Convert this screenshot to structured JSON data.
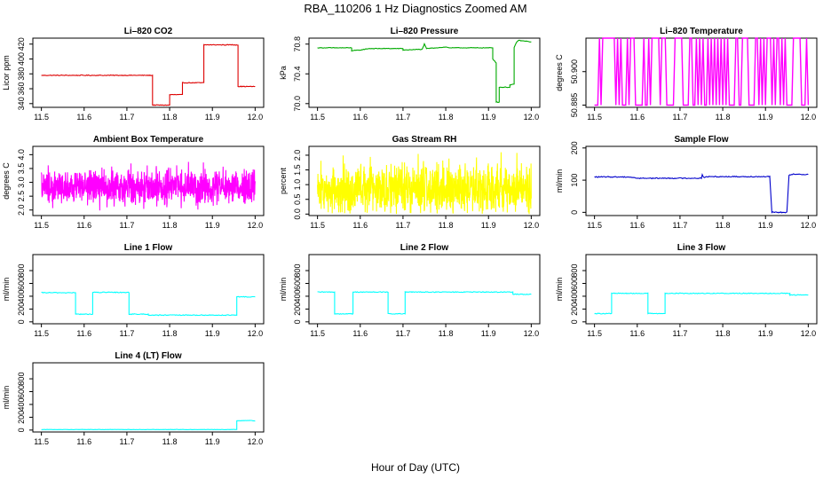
{
  "figure": {
    "title": "RBA_110206  1 Hz Diagnostics Zoomed AM",
    "xlabel": "Hour of Day (UTC)"
  },
  "chart_data": [
    {
      "type": "line",
      "title": "Li–820 CO2",
      "ylabel": "Licor ppm",
      "color": "#dd0000",
      "xlim": [
        11.5,
        12.0
      ],
      "ylim": [
        335,
        428
      ],
      "xticks": [
        "11.5",
        "11.6",
        "11.7",
        "11.8",
        "11.9",
        "12.0"
      ],
      "yticks": [
        "340",
        "360",
        "380",
        "400",
        "420"
      ],
      "noise": 0.5,
      "series": [
        {
          "x": [
            11.5,
            11.76,
            11.76,
            11.8,
            11.8,
            11.83,
            11.83,
            11.88,
            11.88,
            11.96,
            11.96,
            12.0
          ],
          "y": [
            378,
            378,
            338,
            338,
            352,
            352,
            368,
            368,
            419,
            419,
            363,
            363
          ]
        }
      ]
    },
    {
      "type": "line",
      "title": "Li–820 Pressure",
      "ylabel": "kPa",
      "color": "#00aa00",
      "xlim": [
        11.5,
        12.0
      ],
      "ylim": [
        69.95,
        70.88
      ],
      "xticks": [
        "11.5",
        "11.6",
        "11.7",
        "11.8",
        "11.9",
        "12.0"
      ],
      "yticks": [
        "70.0",
        "70.4",
        "70.8"
      ],
      "noise": 0.004,
      "series": [
        {
          "x": [
            11.5,
            11.58,
            11.58,
            11.6,
            11.62,
            11.7,
            11.7,
            11.745,
            11.75,
            11.755,
            11.8,
            11.81,
            11.91,
            11.91,
            11.918,
            11.918,
            11.925,
            11.925,
            11.95,
            11.95,
            11.96,
            11.96,
            11.965,
            11.97,
            12.0
          ],
          "y": [
            70.75,
            70.75,
            70.71,
            70.72,
            70.74,
            70.74,
            70.72,
            70.73,
            70.8,
            70.74,
            70.76,
            70.75,
            70.75,
            70.6,
            70.55,
            70.02,
            70.02,
            70.22,
            70.22,
            70.25,
            70.26,
            70.75,
            70.82,
            70.85,
            70.83
          ]
        }
      ]
    },
    {
      "type": "line",
      "title": "Li–820 Temperature",
      "ylabel": "degrees C",
      "color": "#ff00ff",
      "xlim": [
        11.5,
        12.0
      ],
      "ylim": [
        50.884,
        50.915
      ],
      "xticks": [
        "11.5",
        "11.6",
        "11.7",
        "11.8",
        "11.9",
        "12.0"
      ],
      "yticks": [
        "50.885",
        "50.900"
      ],
      "toggle": {
        "low": 50.885,
        "high": 50.915,
        "count": 130
      }
    },
    {
      "type": "line",
      "title": "Ambient Box Temperature",
      "ylabel": "degrees C",
      "color": "#ff00ff",
      "xlim": [
        11.5,
        12.0
      ],
      "ylim": [
        1.8,
        4.3
      ],
      "xticks": [
        "11.5",
        "11.6",
        "11.7",
        "11.8",
        "11.9",
        "12.0"
      ],
      "yticks": [
        "2.0",
        "2.5",
        "3.0",
        "3.5",
        "4.0"
      ],
      "randomband": {
        "center": 2.8,
        "amp": 0.45,
        "count": 1000
      }
    },
    {
      "type": "line",
      "title": "Gas Stream RH",
      "ylabel": "percent",
      "color": "#ffff00",
      "xlim": [
        11.5,
        12.0
      ],
      "ylim": [
        -0.05,
        2.3
      ],
      "xticks": [
        "11.5",
        "11.6",
        "11.7",
        "11.8",
        "11.9",
        "12.0"
      ],
      "yticks": [
        "0.0",
        "0.5",
        "1.0",
        "1.5",
        "2.0"
      ],
      "randomband": {
        "center": 0.85,
        "amp": 0.6,
        "count": 1000,
        "floor": 0.0
      }
    },
    {
      "type": "line",
      "title": "Sample Flow",
      "ylabel": "ml/min",
      "color": "#0000cc",
      "xlim": [
        11.5,
        12.0
      ],
      "ylim": [
        -10,
        205
      ],
      "xticks": [
        "11.5",
        "11.6",
        "11.7",
        "11.8",
        "11.9",
        "12.0"
      ],
      "yticks": [
        "0",
        "100",
        "200"
      ],
      "noise": 1.5,
      "series": [
        {
          "x": [
            11.5,
            11.58,
            11.6,
            11.75,
            11.752,
            11.755,
            11.77,
            11.91,
            11.915,
            11.95,
            11.955,
            11.965,
            12.0
          ],
          "y": [
            110,
            110,
            106,
            106,
            118,
            109,
            111,
            111,
            0,
            0,
            115,
            118,
            118
          ]
        }
      ]
    },
    {
      "type": "line",
      "title": "Line 1 Flow",
      "ylabel": "ml/min",
      "color": "#00ffff",
      "xlim": [
        11.5,
        12.0
      ],
      "ylim": [
        -30,
        1050
      ],
      "xticks": [
        "11.5",
        "11.6",
        "11.7",
        "11.8",
        "11.9",
        "12.0"
      ],
      "yticks": [
        "0",
        "200",
        "400",
        "600",
        "800"
      ],
      "noise": 6,
      "series": [
        {
          "x": [
            11.5,
            11.58,
            11.58,
            11.62,
            11.62,
            11.705,
            11.705,
            11.75,
            11.75,
            11.957,
            11.957,
            12.0
          ],
          "y": [
            455,
            455,
            120,
            120,
            460,
            460,
            120,
            120,
            105,
            105,
            390,
            390
          ]
        }
      ]
    },
    {
      "type": "line",
      "title": "Line 2 Flow",
      "ylabel": "ml/min",
      "color": "#00ffff",
      "xlim": [
        11.5,
        12.0
      ],
      "ylim": [
        -30,
        1050
      ],
      "xticks": [
        "11.5",
        "11.6",
        "11.7",
        "11.8",
        "11.9",
        "12.0"
      ],
      "yticks": [
        "0",
        "200",
        "400",
        "600",
        "800"
      ],
      "noise": 6,
      "series": [
        {
          "x": [
            11.5,
            11.54,
            11.54,
            11.583,
            11.583,
            11.665,
            11.665,
            11.705,
            11.705,
            11.957,
            11.957,
            12.0
          ],
          "y": [
            465,
            465,
            125,
            125,
            465,
            465,
            125,
            125,
            465,
            465,
            430,
            430
          ]
        }
      ]
    },
    {
      "type": "line",
      "title": "Line 3 Flow",
      "ylabel": "ml/min",
      "color": "#00ffff",
      "xlim": [
        11.5,
        12.0
      ],
      "ylim": [
        -30,
        1050
      ],
      "xticks": [
        "11.5",
        "11.6",
        "11.7",
        "11.8",
        "11.9",
        "12.0"
      ],
      "yticks": [
        "0",
        "200",
        "400",
        "600",
        "800"
      ],
      "noise": 6,
      "series": [
        {
          "x": [
            11.5,
            11.54,
            11.54,
            11.625,
            11.625,
            11.665,
            11.665,
            11.957,
            11.957,
            12.0
          ],
          "y": [
            130,
            130,
            445,
            445,
            130,
            130,
            445,
            445,
            420,
            420
          ]
        }
      ]
    },
    {
      "type": "line",
      "title": "Line 4 (LT) Flow",
      "ylabel": "ml/min",
      "color": "#00ffff",
      "xlim": [
        11.5,
        12.0
      ],
      "ylim": [
        -30,
        1050
      ],
      "xticks": [
        "11.5",
        "11.6",
        "11.7",
        "11.8",
        "11.9",
        "12.0"
      ],
      "yticks": [
        "0",
        "200",
        "400",
        "600",
        "800"
      ],
      "noise": 2,
      "series": [
        {
          "x": [
            11.5,
            11.957,
            11.957,
            11.99,
            12.0
          ],
          "y": [
            8,
            8,
            145,
            150,
            140
          ]
        }
      ]
    }
  ]
}
